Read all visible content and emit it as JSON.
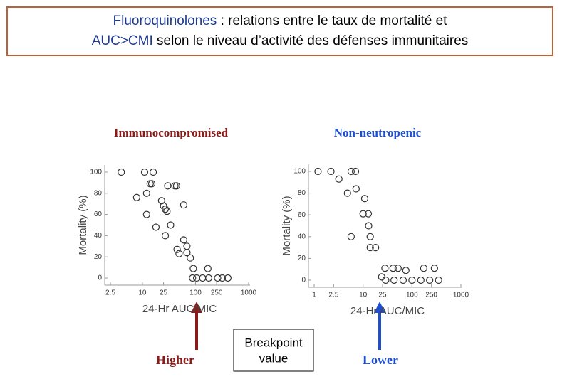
{
  "slide": {
    "title": [
      [
        "Fluoroquinolones",
        " : relations entre le taux de mortalité et"
      ],
      [
        "AUC>CMI",
        " selon le niveau d’activité des défenses immunitaires"
      ]
    ],
    "higher": "Higher",
    "lower": "Lower",
    "breakpoint": [
      "Breakpoint",
      "value"
    ]
  },
  "chart_data": [
    {
      "type": "scatter",
      "title": "Immunocompromised",
      "title_color": "#8b1a1a",
      "x_label": "24-Hr AUC/MIC",
      "y_label": "Mortality (%)",
      "log_x": true,
      "xlim": [
        2.5,
        1000
      ],
      "ylim": [
        0,
        100
      ],
      "xticks": [
        2.5,
        10,
        25,
        100,
        250,
        1000
      ],
      "yticks": [
        0,
        20,
        40,
        60,
        80,
        100
      ],
      "series": [
        {
          "name": "Immunocompromised",
          "color": "#333333",
          "x": [
            4,
            11,
            16,
            7.8,
            12,
            14,
            15,
            30,
            41,
            44,
            23,
            25,
            27,
            60,
            29,
            12,
            18,
            34,
            27,
            60,
            69,
            45,
            49,
            69,
            80,
            91,
            88,
            105,
            136,
            171,
            177,
            261,
            318,
            407
          ],
          "values": [
            100,
            100,
            100,
            76,
            80,
            89,
            89,
            87,
            87,
            87,
            73,
            68,
            65,
            69,
            63,
            60,
            48,
            50,
            40,
            36,
            30,
            27,
            23,
            24,
            19,
            9,
            0,
            0,
            0,
            9,
            0,
            0,
            0,
            0
          ]
        }
      ]
    },
    {
      "type": "scatter",
      "title": "Non-neutropenic",
      "title_color": "#1f4fd1",
      "x_label": "24-Hr AUC/MIC",
      "y_label": "Mortality (%)",
      "log_x": true,
      "xlim": [
        1,
        1000
      ],
      "ylim": [
        0,
        100
      ],
      "xticks": [
        1,
        2.5,
        10,
        25,
        100,
        250,
        1000
      ],
      "yticks": [
        0,
        20,
        40,
        60,
        80,
        100
      ],
      "series": [
        {
          "name": "Non-neutropenic",
          "color": "#333333",
          "x": [
            1.2,
            2.2,
            3.2,
            5.7,
            7,
            4.8,
            7.2,
            10.8,
            10,
            12.8,
            13,
            5.7,
            14,
            14,
            18,
            28,
            24,
            41,
            52,
            75,
            29,
            43,
            66,
            100,
            152,
            230,
            350,
            174,
            288
          ],
          "values": [
            100,
            100,
            93,
            100,
            100,
            80,
            84,
            75,
            61,
            61,
            50,
            40,
            40,
            30,
            30,
            11,
            3,
            11,
            11,
            9,
            0,
            0,
            0,
            0,
            0,
            0,
            0,
            11,
            11
          ]
        }
      ]
    }
  ]
}
